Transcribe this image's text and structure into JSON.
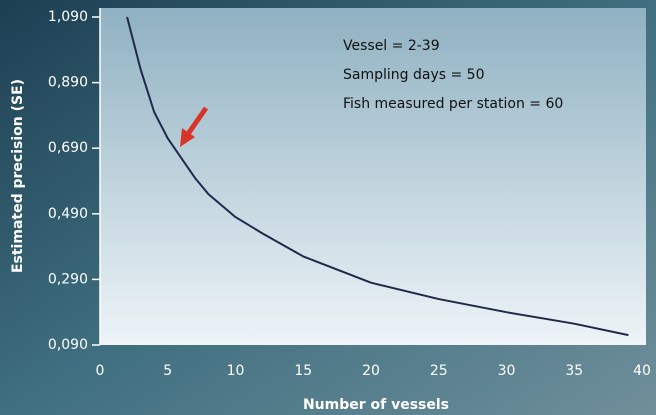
{
  "chart_data": {
    "type": "line",
    "x_label": "Number of vessels",
    "y_label": "Estimated precision (SE)",
    "annotations": [
      "Vessel = 2-39",
      "Sampling days = 50",
      "Fish measured per station = 60"
    ],
    "x": [
      2,
      3,
      4,
      5,
      6,
      7,
      8,
      10,
      12,
      15,
      20,
      25,
      30,
      35,
      39
    ],
    "series": [
      {
        "color": "#1f2a4a",
        "values": [
          1.09,
          0.93,
          0.8,
          0.72,
          0.66,
          0.6,
          0.55,
          0.48,
          0.43,
          0.36,
          0.28,
          0.23,
          0.19,
          0.155,
          0.12
        ]
      }
    ],
    "xlim": [
      0,
      40
    ],
    "xticks": [
      0,
      5,
      10,
      15,
      20,
      25,
      30,
      35,
      40
    ],
    "ylim": [
      0.09,
      1.09
    ],
    "yticks": [
      {
        "value": 0.09,
        "label": "0,090"
      },
      {
        "value": 0.29,
        "label": "0,290"
      },
      {
        "value": 0.49,
        "label": "0,490"
      },
      {
        "value": 0.69,
        "label": "0,690"
      },
      {
        "value": 0.89,
        "label": "0,890"
      },
      {
        "value": 1.09,
        "label": "1,090"
      }
    ],
    "grid": false
  }
}
